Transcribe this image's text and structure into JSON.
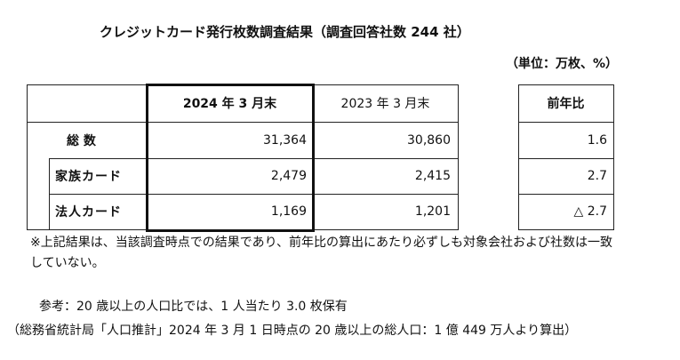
{
  "header": {
    "title": "クレジットカード発行枚数調査結果（調査回答社数 244 社）",
    "unit": "（単位：万枚、%）"
  },
  "table": {
    "columns": [
      "2024 年 3 月末",
      "2023 年 3 月末",
      "前年比"
    ],
    "rows": [
      [
        "総 数",
        "31,364",
        "30,860",
        "1.6"
      ],
      [
        "家族カード",
        "2,479",
        "2,415",
        "2.7"
      ],
      [
        "法人カード",
        "1,169",
        "1,201",
        "△ 2.7"
      ]
    ]
  },
  "note": "※上記結果は、当該調査時点での結果であり、前年比の算出にあたり必ずしも対象会社および社数は一致していない。",
  "reference": [
    "参考：20 歳以上の人口比では、1 人当たり 3.0 枚保有",
    "（総務省統計局「人口推計」2024 年 3 月 1 日時点の 20 歳以上の総人口：1 億 449 万人より算出）"
  ]
}
